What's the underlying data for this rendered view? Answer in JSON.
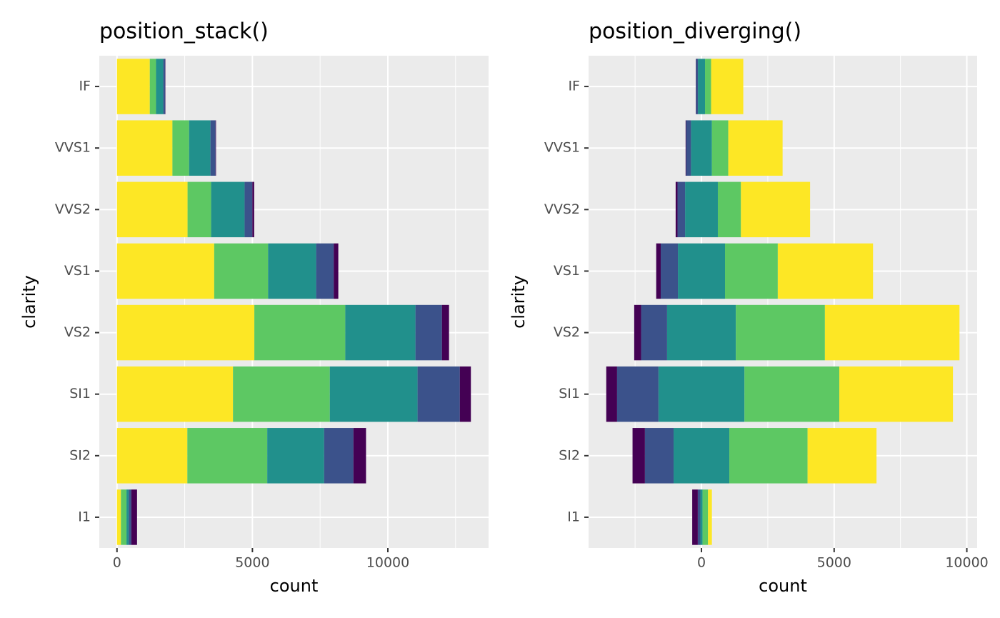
{
  "chart_data": [
    {
      "type": "bar",
      "position": "stack",
      "title": "position_stack()",
      "xlabel": "count",
      "ylabel": "clarity",
      "categories": [
        "I1",
        "SI2",
        "SI1",
        "VS2",
        "VS1",
        "VVS2",
        "VVS1",
        "IF"
      ],
      "series": [
        {
          "color": "#440154",
          "values": [
            210,
            466,
            408,
            261,
            170,
            69,
            17,
            9
          ]
        },
        {
          "color": "#3B528B",
          "values": [
            96,
            1081,
            1560,
            978,
            648,
            286,
            186,
            71
          ]
        },
        {
          "color": "#21908C",
          "values": [
            84,
            2100,
            3240,
            2591,
            1775,
            1235,
            789,
            268
          ]
        },
        {
          "color": "#5DC863",
          "values": [
            205,
            2949,
            3575,
            3357,
            1989,
            870,
            616,
            230
          ]
        },
        {
          "color": "#FDE725",
          "values": [
            146,
            2598,
            4282,
            5071,
            3589,
            2606,
            2047,
            1212
          ]
        }
      ],
      "xlim": [
        -653,
        13718
      ],
      "xticks": [
        0,
        5000,
        10000
      ],
      "grid": true
    },
    {
      "type": "bar",
      "position": "diverging",
      "title": "position_diverging()",
      "xlabel": "count",
      "ylabel": "clarity",
      "categories": [
        "I1",
        "SI2",
        "SI1",
        "VS2",
        "VS1",
        "VVS2",
        "VVS1",
        "IF"
      ],
      "series": [
        {
          "color": "#440154",
          "values": [
            210,
            466,
            408,
            261,
            170,
            69,
            17,
            9
          ]
        },
        {
          "color": "#3B528B",
          "values": [
            96,
            1081,
            1560,
            978,
            648,
            286,
            186,
            71
          ]
        },
        {
          "color": "#21908C",
          "values": [
            84,
            2100,
            3240,
            2591,
            1775,
            1235,
            789,
            268
          ]
        },
        {
          "color": "#5DC863",
          "values": [
            205,
            2949,
            3575,
            3357,
            1989,
            870,
            616,
            230
          ]
        },
        {
          "color": "#FDE725",
          "values": [
            146,
            2598,
            4282,
            5071,
            3589,
            2606,
            2047,
            1212
          ]
        }
      ],
      "xlim": [
        -4254,
        10389
      ],
      "xticks": [
        0,
        5000,
        10000
      ],
      "grid": true
    }
  ]
}
